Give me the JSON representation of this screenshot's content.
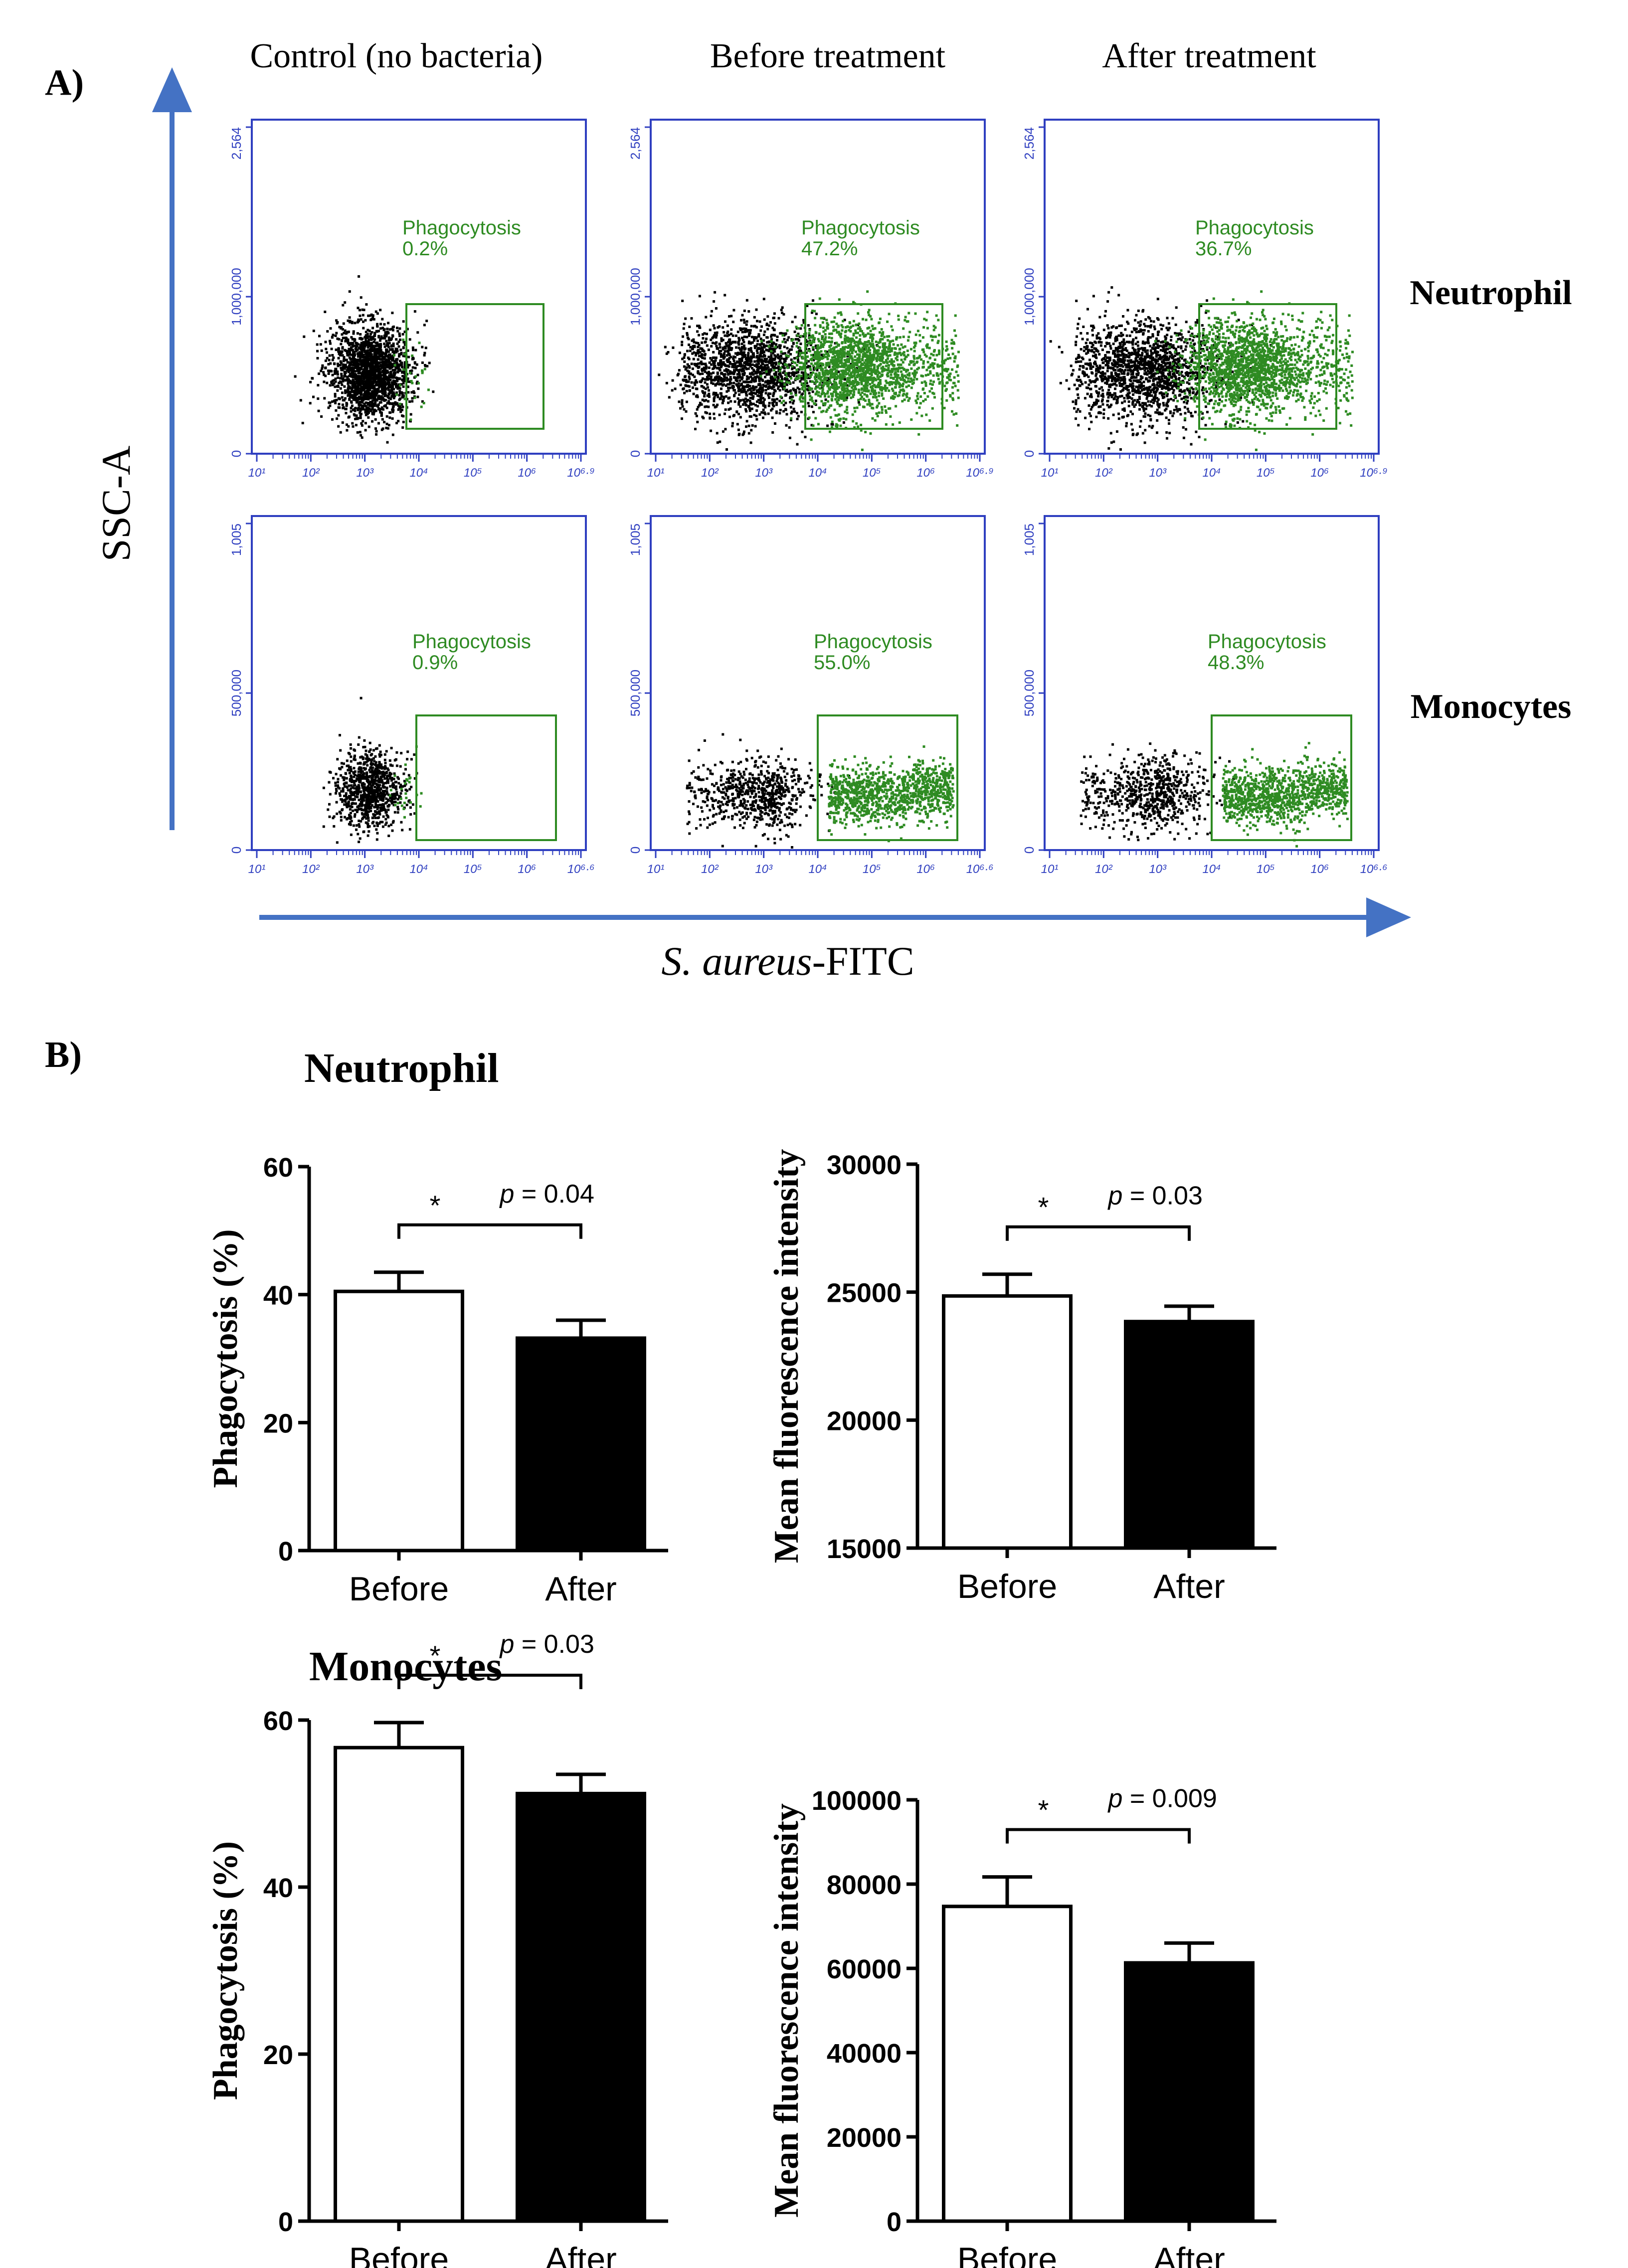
{
  "panel_a": {
    "label": "A)",
    "column_titles": [
      "Control (no bacteria)",
      "Before treatment",
      "After treatment"
    ],
    "row_labels": [
      "Neutrophil",
      "Monocytes"
    ],
    "y_axis_title": "SSC-A",
    "x_axis_title_italic": "S. aureus",
    "x_axis_title_suffix": "-FITC",
    "gate_label": "Phagocytosis",
    "neutrophil_plots": [
      {
        "column": "Control (no bacteria)",
        "gate_percent": "0.2%"
      },
      {
        "column": "Before treatment",
        "gate_percent": "47.2%"
      },
      {
        "column": "After treatment",
        "gate_percent": "36.7%"
      }
    ],
    "monocyte_plots": [
      {
        "column": "Control (no bacteria)",
        "gate_percent": "0.9%"
      },
      {
        "column": "Before treatment",
        "gate_percent": "55.0%"
      },
      {
        "column": "After treatment",
        "gate_percent": "48.3%"
      }
    ],
    "neutrophil_y_ticks": [
      "0",
      "1,000,000",
      "2,564"
    ],
    "neutrophil_x_ticks": [
      "10¹",
      "10²",
      "10³",
      "10⁴",
      "10⁵",
      "10⁶",
      "10⁶·⁹"
    ],
    "monocyte_y_ticks": [
      "0",
      "500,000",
      "1,005"
    ],
    "monocyte_x_ticks": [
      "10¹",
      "10²",
      "10³",
      "10⁴",
      "10⁵",
      "10⁶",
      "10⁶·⁶"
    ],
    "colors": {
      "axis": "#2f3fc0",
      "gate": "#2e8b22",
      "ungated": "#000000",
      "arrow": "#4472c4"
    }
  },
  "panel_b": {
    "label": "B)",
    "groups": [
      {
        "title": "Neutrophil"
      },
      {
        "title": "Monocytes"
      }
    ]
  },
  "chart_data": [
    {
      "type": "bar",
      "group": "Neutrophil",
      "ylabel": "Phagocytosis (%)",
      "categories": [
        "Before",
        "After"
      ],
      "values": [
        40.5,
        33.2
      ],
      "errors": [
        3.0,
        2.8
      ],
      "ylim": [
        0,
        60
      ],
      "yticks": [
        "0",
        "20",
        "40",
        "60"
      ],
      "significance": "*",
      "p_label": "p",
      "p_text": "= 0.04",
      "bar_fills": [
        "#ffffff",
        "#000000"
      ]
    },
    {
      "type": "bar",
      "group": "Neutrophil",
      "ylabel": "Mean fluorescence intensity",
      "categories": [
        "Before",
        "After"
      ],
      "values": [
        24850,
        23850
      ],
      "errors": [
        850,
        600
      ],
      "ylim": [
        15000,
        30000
      ],
      "yticks": [
        "15000",
        "20000",
        "25000",
        "30000"
      ],
      "significance": "*",
      "p_label": "p",
      "p_text": "= 0.03",
      "bar_fills": [
        "#ffffff",
        "#000000"
      ]
    },
    {
      "type": "bar",
      "group": "Monocytes",
      "ylabel": "Phagocytosis (%)",
      "categories": [
        "Before",
        "After"
      ],
      "values": [
        56.7,
        51.2
      ],
      "errors": [
        3.0,
        2.3
      ],
      "ylim": [
        0,
        60
      ],
      "yticks": [
        "0",
        "20",
        "40",
        "60"
      ],
      "significance": "*",
      "p_label": "p",
      "p_text": "= 0.03",
      "bar_fills": [
        "#ffffff",
        "#000000"
      ]
    },
    {
      "type": "bar",
      "group": "Monocytes",
      "ylabel": "Mean fluorescence intensity",
      "categories": [
        "Before",
        "After"
      ],
      "values": [
        74700,
        61300
      ],
      "errors": [
        7000,
        4700
      ],
      "ylim": [
        0,
        100000
      ],
      "yticks": [
        "0",
        "20000",
        "40000",
        "60000",
        "80000",
        "100000"
      ],
      "significance": "*",
      "p_label": "p",
      "p_text": "= 0.009",
      "bar_fills": [
        "#ffffff",
        "#000000"
      ]
    }
  ]
}
